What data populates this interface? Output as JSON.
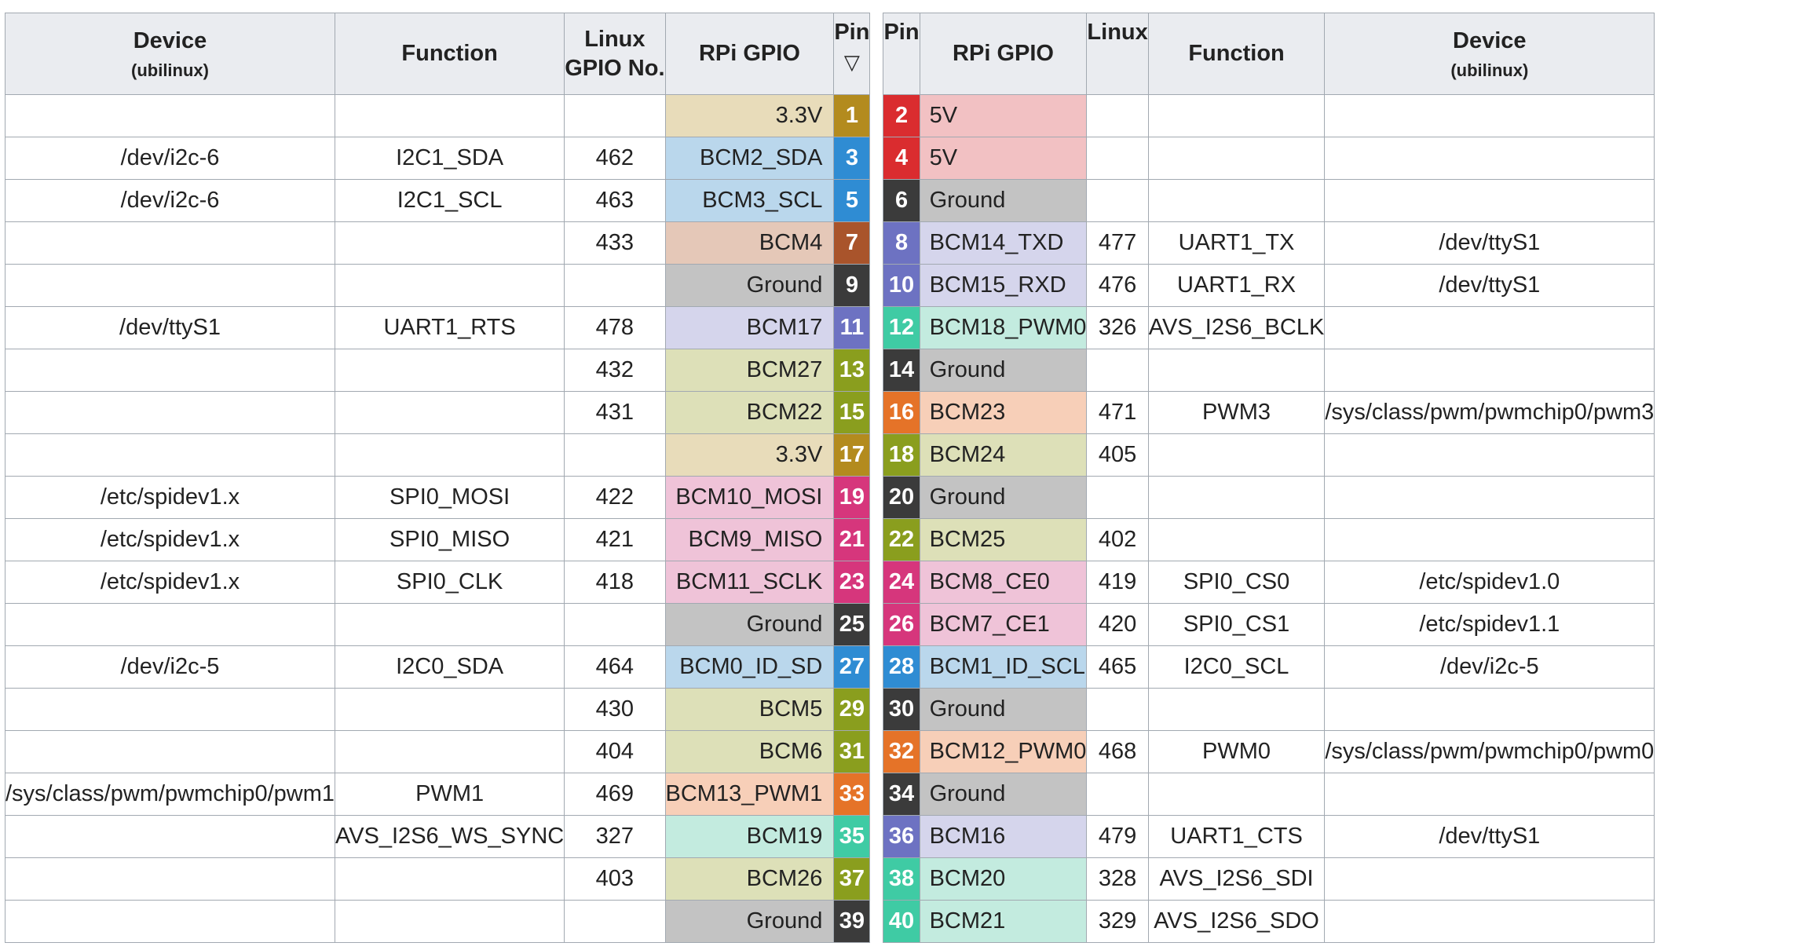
{
  "header": {
    "device": "Device",
    "device_sub": "(ubilinux)",
    "function": "Function",
    "linux_gpio_l1": "Linux",
    "linux_gpio_l2": "GPIO No.",
    "rpi_gpio": "RPi GPIO",
    "pin": "Pin",
    "sort_indicator": "▽",
    "linux": "Linux"
  },
  "colors": {
    "3v3": [
      "#e8dcba",
      "#b38b1e"
    ],
    "5v": [
      "#f2c1c3",
      "#da2c2f"
    ],
    "ground": [
      "#c3c3c3",
      "#3b3b3b"
    ],
    "i2c": [
      "#bad7ec",
      "#2f8cd3"
    ],
    "gpclk": [
      "#e5c8b8",
      "#a9542b"
    ],
    "uart": [
      "#d5d5ec",
      "#6d72c2"
    ],
    "gpio": [
      "#dde0b8",
      "#8a9e1e"
    ],
    "pwm": [
      "#f7cfb8",
      "#e57328"
    ],
    "pcm": [
      "#c3ebdf",
      "#3fcba4"
    ],
    "spi": [
      "#efc3d8",
      "#d6367c"
    ]
  },
  "rows": [
    {
      "ldev": "",
      "lfun": "",
      "lnum": "",
      "lgpio": "3.3V",
      "lpin": "1",
      "lc": "3v3",
      "rpin": "2",
      "rgpio": "5V",
      "rc": "5v",
      "rnum": "",
      "rfun": "",
      "rdev": ""
    },
    {
      "ldev": "/dev/i2c-6",
      "lfun": "I2C1_SDA",
      "lnum": "462",
      "lgpio": "BCM2_SDA",
      "lpin": "3",
      "lc": "i2c",
      "rpin": "4",
      "rgpio": "5V",
      "rc": "5v",
      "rnum": "",
      "rfun": "",
      "rdev": ""
    },
    {
      "ldev": "/dev/i2c-6",
      "lfun": "I2C1_SCL",
      "lnum": "463",
      "lgpio": "BCM3_SCL",
      "lpin": "5",
      "lc": "i2c",
      "rpin": "6",
      "rgpio": "Ground",
      "rc": "ground",
      "rnum": "",
      "rfun": "",
      "rdev": ""
    },
    {
      "ldev": "",
      "lfun": "",
      "lnum": "433",
      "lgpio": "BCM4",
      "lpin": "7",
      "lc": "gpclk",
      "rpin": "8",
      "rgpio": "BCM14_TXD",
      "rc": "uart",
      "rnum": "477",
      "rfun": "UART1_TX",
      "rdev": "/dev/ttyS1"
    },
    {
      "ldev": "",
      "lfun": "",
      "lnum": "",
      "lgpio": "Ground",
      "lpin": "9",
      "lc": "ground",
      "rpin": "10",
      "rgpio": "BCM15_RXD",
      "rc": "uart",
      "rnum": "476",
      "rfun": "UART1_RX",
      "rdev": "/dev/ttyS1"
    },
    {
      "ldev": "/dev/ttyS1",
      "lfun": "UART1_RTS",
      "lnum": "478",
      "lgpio": "BCM17",
      "lpin": "11",
      "lc": "uart",
      "rpin": "12",
      "rgpio": "BCM18_PWM0",
      "rc": "pcm",
      "rnum": "326",
      "rfun": "AVS_I2S6_BCLK",
      "rdev": ""
    },
    {
      "ldev": "",
      "lfun": "",
      "lnum": "432",
      "lgpio": "BCM27",
      "lpin": "13",
      "lc": "gpio",
      "rpin": "14",
      "rgpio": "Ground",
      "rc": "ground",
      "rnum": "",
      "rfun": "",
      "rdev": ""
    },
    {
      "ldev": "",
      "lfun": "",
      "lnum": "431",
      "lgpio": "BCM22",
      "lpin": "15",
      "lc": "gpio",
      "rpin": "16",
      "rgpio": "BCM23",
      "rc": "pwm",
      "rnum": "471",
      "rfun": "PWM3",
      "rdev": "/sys/class/pwm/pwmchip0/pwm3"
    },
    {
      "ldev": "",
      "lfun": "",
      "lnum": "",
      "lgpio": "3.3V",
      "lpin": "17",
      "lc": "3v3",
      "rpin": "18",
      "rgpio": "BCM24",
      "rc": "gpio",
      "rnum": "405",
      "rfun": "",
      "rdev": ""
    },
    {
      "ldev": "/etc/spidev1.x",
      "lfun": "SPI0_MOSI",
      "lnum": "422",
      "lgpio": "BCM10_MOSI",
      "lpin": "19",
      "lc": "spi",
      "rpin": "20",
      "rgpio": "Ground",
      "rc": "ground",
      "rnum": "",
      "rfun": "",
      "rdev": ""
    },
    {
      "ldev": "/etc/spidev1.x",
      "lfun": "SPI0_MISO",
      "lnum": "421",
      "lgpio": "BCM9_MISO",
      "lpin": "21",
      "lc": "spi",
      "rpin": "22",
      "rgpio": "BCM25",
      "rc": "gpio",
      "rnum": "402",
      "rfun": "",
      "rdev": ""
    },
    {
      "ldev": "/etc/spidev1.x",
      "lfun": "SPI0_CLK",
      "lnum": "418",
      "lgpio": "BCM11_SCLK",
      "lpin": "23",
      "lc": "spi",
      "rpin": "24",
      "rgpio": "BCM8_CE0",
      "rc": "spi",
      "rnum": "419",
      "rfun": "SPI0_CS0",
      "rdev": "/etc/spidev1.0"
    },
    {
      "ldev": "",
      "lfun": "",
      "lnum": "",
      "lgpio": "Ground",
      "lpin": "25",
      "lc": "ground",
      "rpin": "26",
      "rgpio": "BCM7_CE1",
      "rc": "spi",
      "rnum": "420",
      "rfun": "SPI0_CS1",
      "rdev": "/etc/spidev1.1"
    },
    {
      "ldev": "/dev/i2c-5",
      "lfun": "I2C0_SDA",
      "lnum": "464",
      "lgpio": "BCM0_ID_SD",
      "lpin": "27",
      "lc": "i2c",
      "rpin": "28",
      "rgpio": "BCM1_ID_SCL",
      "rc": "i2c",
      "rnum": "465",
      "rfun": "I2C0_SCL",
      "rdev": "/dev/i2c-5"
    },
    {
      "ldev": "",
      "lfun": "",
      "lnum": "430",
      "lgpio": "BCM5",
      "lpin": "29",
      "lc": "gpio",
      "rpin": "30",
      "rgpio": "Ground",
      "rc": "ground",
      "rnum": "",
      "rfun": "",
      "rdev": ""
    },
    {
      "ldev": "",
      "lfun": "",
      "lnum": "404",
      "lgpio": "BCM6",
      "lpin": "31",
      "lc": "gpio",
      "rpin": "32",
      "rgpio": "BCM12_PWM0",
      "rc": "pwm",
      "rnum": "468",
      "rfun": "PWM0",
      "rdev": "/sys/class/pwm/pwmchip0/pwm0"
    },
    {
      "ldev": "/sys/class/pwm/pwmchip0/pwm1",
      "lfun": "PWM1",
      "lnum": "469",
      "lgpio": "BCM13_PWM1",
      "lpin": "33",
      "lc": "pwm",
      "rpin": "34",
      "rgpio": "Ground",
      "rc": "ground",
      "rnum": "",
      "rfun": "",
      "rdev": ""
    },
    {
      "ldev": "",
      "lfun": "AVS_I2S6_WS_SYNC",
      "lnum": "327",
      "lgpio": "BCM19",
      "lpin": "35",
      "lc": "pcm",
      "rpin": "36",
      "rgpio": "BCM16",
      "rc": "uart",
      "rnum": "479",
      "rfun": "UART1_CTS",
      "rdev": "/dev/ttyS1"
    },
    {
      "ldev": "",
      "lfun": "",
      "lnum": "403",
      "lgpio": "BCM26",
      "lpin": "37",
      "lc": "gpio",
      "rpin": "38",
      "rgpio": "BCM20",
      "rc": "pcm",
      "rnum": "328",
      "rfun": "AVS_I2S6_SDI",
      "rdev": ""
    },
    {
      "ldev": "",
      "lfun": "",
      "lnum": "",
      "lgpio": "Ground",
      "lpin": "39",
      "lc": "ground",
      "rpin": "40",
      "rgpio": "BCM21",
      "rc": "pcm",
      "rnum": "329",
      "rfun": "AVS_I2S6_SDO",
      "rdev": ""
    }
  ]
}
